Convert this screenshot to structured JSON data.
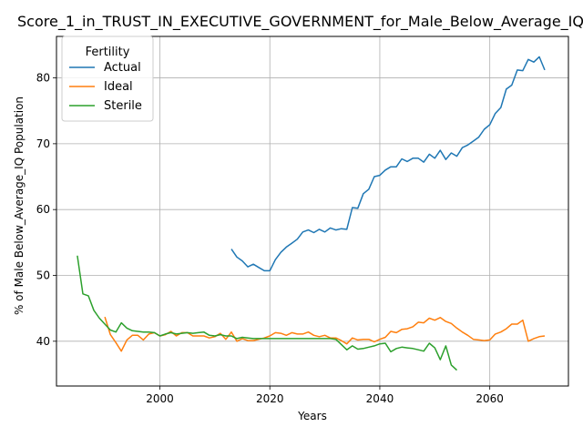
{
  "chart_data": {
    "type": "line",
    "title": "Score_1_in_TRUST_IN_EXECUTIVE_GOVERNMENT_for_Male_Below_Average_IQ",
    "xlabel": "Years",
    "ylabel": "% of Male Below_Average_IQ Population",
    "xlim": [
      1981.2,
      2074.3
    ],
    "ylim": [
      33.2,
      86.3
    ],
    "xticks": [
      2000,
      2020,
      2040,
      2060
    ],
    "yticks": [
      40,
      50,
      60,
      70,
      80
    ],
    "grid": true,
    "legend": {
      "title": "Fertility",
      "placement": "top-left"
    },
    "series": [
      {
        "name": "Actual",
        "color": "#1f77b4",
        "x": [
          2013,
          2014,
          2015,
          2016,
          2017,
          2018,
          2019,
          2020,
          2021,
          2022,
          2023,
          2024,
          2025,
          2026,
          2027,
          2028,
          2029,
          2030,
          2031,
          2032,
          2033,
          2034,
          2035,
          2036,
          2037,
          2038,
          2039,
          2040,
          2041,
          2042,
          2043,
          2044,
          2045,
          2046,
          2047,
          2048,
          2049,
          2050,
          2051,
          2052,
          2053,
          2054,
          2055,
          2056,
          2057,
          2058,
          2059,
          2060,
          2061,
          2062,
          2063,
          2064,
          2065,
          2066,
          2067,
          2068,
          2069,
          2070
        ],
        "y": [
          54.0,
          52.8,
          52.2,
          51.3,
          51.7,
          51.2,
          50.7,
          50.7,
          52.4,
          53.5,
          54.3,
          54.9,
          55.5,
          56.6,
          56.9,
          56.5,
          57.0,
          56.6,
          57.2,
          56.9,
          57.1,
          57.0,
          60.3,
          60.2,
          62.4,
          63.1,
          65.0,
          65.2,
          66.0,
          66.5,
          66.5,
          67.7,
          67.3,
          67.8,
          67.8,
          67.2,
          68.4,
          67.8,
          69.0,
          67.6,
          68.6,
          68.1,
          69.4,
          69.8,
          70.4,
          71.0,
          72.2,
          72.9,
          74.6,
          75.5,
          78.3,
          78.9,
          81.2,
          81.1,
          82.8,
          82.4,
          83.2,
          81.2
        ]
      },
      {
        "name": "Ideal",
        "color": "#ff7f0e",
        "x": [
          1990,
          1991,
          1992,
          1993,
          1994,
          1995,
          1996,
          1997,
          1998,
          1999,
          2000,
          2001,
          2002,
          2003,
          2004,
          2005,
          2006,
          2007,
          2008,
          2009,
          2010,
          2011,
          2012,
          2013,
          2014,
          2015,
          2016,
          2017,
          2018,
          2019,
          2020,
          2021,
          2022,
          2023,
          2024,
          2025,
          2026,
          2027,
          2028,
          2029,
          2030,
          2031,
          2032,
          2033,
          2034,
          2035,
          2036,
          2037,
          2038,
          2039,
          2040,
          2041,
          2042,
          2043,
          2044,
          2045,
          2046,
          2047,
          2048,
          2049,
          2050,
          2051,
          2052,
          2053,
          2054,
          2055,
          2056,
          2057,
          2058,
          2059,
          2060,
          2061,
          2062,
          2063,
          2064,
          2065,
          2066,
          2067,
          2068,
          2069,
          2070
        ],
        "y": [
          43.7,
          41.0,
          39.8,
          38.5,
          40.2,
          40.9,
          40.9,
          40.2,
          41.1,
          41.3,
          40.8,
          41.0,
          41.5,
          40.8,
          41.3,
          41.3,
          40.8,
          40.8,
          40.8,
          40.5,
          40.7,
          41.2,
          40.3,
          41.4,
          40.0,
          40.4,
          40.1,
          40.1,
          40.3,
          40.5,
          40.8,
          41.3,
          41.2,
          40.9,
          41.3,
          41.1,
          41.1,
          41.4,
          40.9,
          40.7,
          40.9,
          40.5,
          40.5,
          40.1,
          39.6,
          40.5,
          40.2,
          40.3,
          40.3,
          39.9,
          40.3,
          40.6,
          41.5,
          41.3,
          41.8,
          41.9,
          42.2,
          42.9,
          42.8,
          43.5,
          43.2,
          43.6,
          43.0,
          42.7,
          42.0,
          41.4,
          40.9,
          40.3,
          40.2,
          40.1,
          40.2,
          41.1,
          41.4,
          41.9,
          42.6,
          42.6,
          43.2,
          40.0,
          40.4,
          40.7,
          40.8
        ]
      },
      {
        "name": "Sterile",
        "color": "#2ca02c",
        "x": [
          1985,
          1986,
          1987,
          1988,
          1989,
          1990,
          1991,
          1992,
          1993,
          1994,
          1995,
          1996,
          1997,
          1998,
          1999,
          2000,
          2001,
          2002,
          2003,
          2004,
          2005,
          2006,
          2007,
          2008,
          2009,
          2010,
          2011,
          2012,
          2013,
          2014,
          2015,
          2016,
          2017,
          2018,
          2019,
          2020,
          2021,
          2022,
          2023,
          2024,
          2025,
          2026,
          2027,
          2028,
          2029,
          2030,
          2031,
          2032,
          2033,
          2034,
          2035,
          2036,
          2037,
          2038,
          2039,
          2040,
          2041,
          2042,
          2043,
          2044,
          2045,
          2046,
          2047,
          2048,
          2049,
          2050,
          2051,
          2052,
          2053,
          2054
        ],
        "y": [
          53.0,
          47.2,
          46.9,
          44.7,
          43.5,
          42.6,
          41.7,
          41.4,
          42.8,
          42.0,
          41.6,
          41.5,
          41.4,
          41.4,
          41.3,
          40.8,
          41.1,
          41.3,
          41.1,
          41.2,
          41.3,
          41.2,
          41.3,
          41.4,
          40.9,
          40.8,
          41.0,
          40.8,
          40.8,
          40.4,
          40.6,
          40.5,
          40.4,
          40.4,
          40.4,
          40.4,
          40.4,
          40.4,
          40.4,
          40.4,
          40.4,
          40.4,
          40.4,
          40.4,
          40.4,
          40.4,
          40.4,
          40.3,
          39.5,
          38.7,
          39.3,
          38.8,
          38.9,
          39.1,
          39.3,
          39.6,
          39.7,
          38.4,
          38.9,
          39.1,
          39.0,
          38.9,
          38.7,
          38.5,
          39.7,
          39.0,
          37.2,
          39.3,
          36.4,
          35.6
        ]
      }
    ]
  }
}
